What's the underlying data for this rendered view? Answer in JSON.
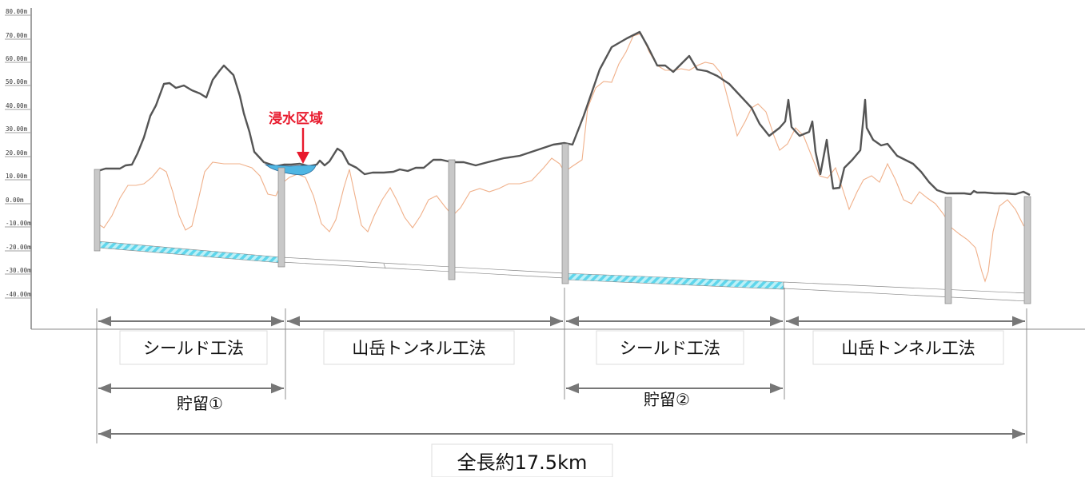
{
  "elevation_axis": {
    "ticks": [
      "80.00m",
      "70.00m",
      "60.00m",
      "50.00m",
      "40.00m",
      "30.00m",
      "20.00m",
      "10.00m",
      "0.00m",
      "-10.00m",
      "-20.00m",
      "-30.00m",
      "-40.00m"
    ]
  },
  "flood_label": "浸水区域",
  "methods": [
    "シールド工法",
    "山岳トンネル工法",
    "シールド工法",
    "山岳トンネル工法"
  ],
  "storage": [
    "貯留①",
    "貯留②"
  ],
  "total_length": "全長約17.5km",
  "colors": {
    "ground": "#555555",
    "water_line": "#f0b08a",
    "flood": "#4fb6e3",
    "shield_hatch": "#5fd6ec",
    "shaft": "#c8c8c8",
    "dim": "#777777",
    "flood_text": "#e8192c"
  }
}
